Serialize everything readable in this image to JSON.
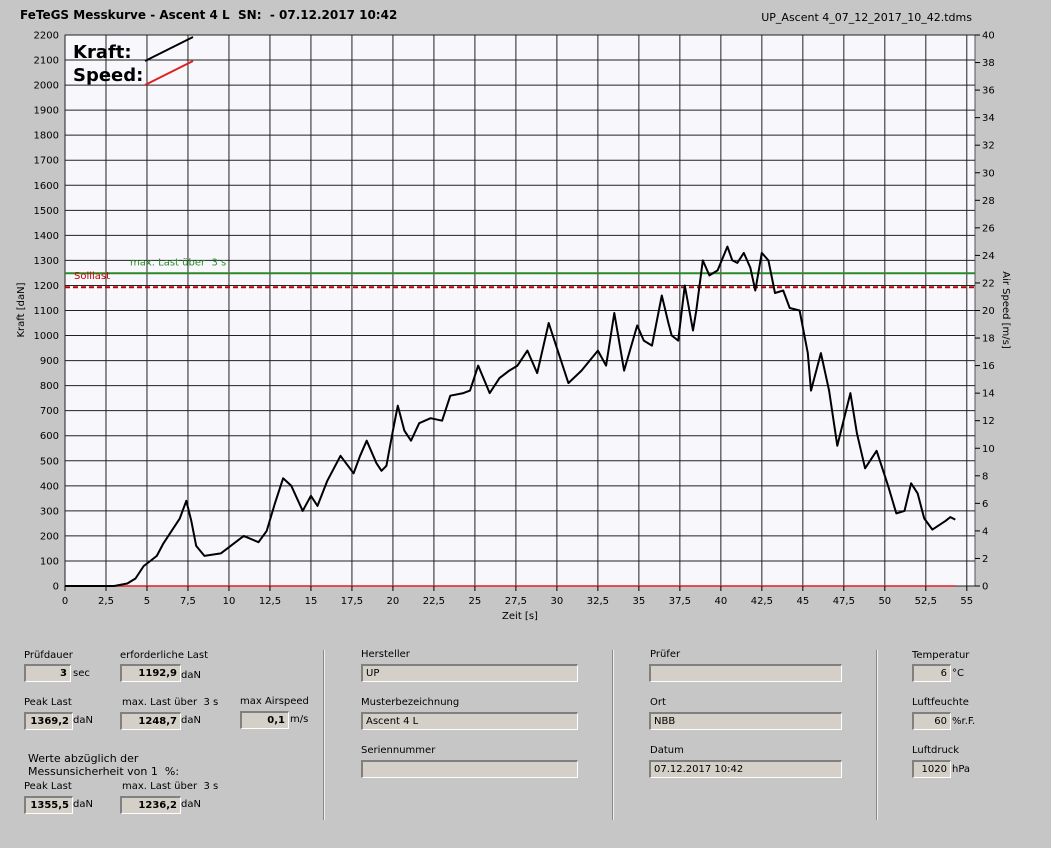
{
  "window_title": "FeTeGS Messkurve - Ascent 4 L  SN:  - 07.12.2017 10:42",
  "file_name": "UP_Ascent 4_07_12_2017_10_42.tdms",
  "chart_data": {
    "type": "line",
    "xlabel": "Zeit [s]",
    "ylabel": "Kraft [daN]",
    "y2label": "Air Speed [m/s]",
    "xlim": [
      0,
      55.5
    ],
    "ylim": [
      0,
      2200
    ],
    "y2lim": [
      0,
      40
    ],
    "xticks": [
      0,
      {
        "value": 2.5,
        "label": "2,5"
      },
      5,
      {
        "value": 7.5,
        "label": "7,5"
      },
      10,
      {
        "value": 12.5,
        "label": "12,5"
      },
      15,
      {
        "value": 17.5,
        "label": "17,5"
      },
      20,
      {
        "value": 22.5,
        "label": "22,5"
      },
      25,
      {
        "value": 27.5,
        "label": "27,5"
      },
      30,
      {
        "value": 32.5,
        "label": "32,5"
      },
      35,
      {
        "value": 37.5,
        "label": "37,5"
      },
      40,
      {
        "value": 42.5,
        "label": "42,5"
      },
      45,
      {
        "value": 47.5,
        "label": "47,5"
      },
      50,
      {
        "value": 52.5,
        "label": "52,5"
      },
      55
    ],
    "yticks": [
      0,
      100,
      200,
      300,
      400,
      500,
      600,
      700,
      800,
      900,
      1000,
      1100,
      1200,
      1300,
      1400,
      1500,
      1600,
      1700,
      1800,
      1900,
      2000,
      2100,
      2200
    ],
    "y2ticks": [
      0,
      2,
      4,
      6,
      8,
      10,
      12,
      14,
      16,
      18,
      20,
      22,
      24,
      26,
      28,
      30,
      32,
      34,
      36,
      38,
      40
    ],
    "grid": true,
    "series": [
      {
        "name": "Kraft:",
        "color": "#000000",
        "x": [
          0,
          3,
          3.8,
          4.3,
          4.8,
          5.2,
          5.6,
          6,
          6.5,
          7,
          7.4,
          7.7,
          8,
          8.5,
          9.5,
          10.3,
          10.9,
          11.8,
          12.3,
          12.8,
          13.3,
          13.8,
          14.5,
          15,
          15.4,
          16,
          16.8,
          17.6,
          18,
          18.4,
          19,
          19.3,
          19.6,
          20,
          20.3,
          20.7,
          21.1,
          21.6,
          22.3,
          23,
          23.5,
          24.3,
          24.7,
          25.2,
          25.9,
          26.5,
          27.1,
          27.6,
          28.2,
          28.8,
          29.5,
          30,
          30.7,
          31.5,
          32,
          32.5,
          33,
          33.5,
          34.1,
          34.9,
          35.3,
          35.8,
          36.4,
          36.8,
          37,
          37.4,
          37.8,
          38.3,
          38.5,
          38.9,
          39.3,
          39.8,
          40.4,
          40.7,
          41,
          41.4,
          41.8,
          42.1,
          42.5,
          42.9,
          43.3,
          43.8,
          44.2,
          44.8,
          45.3,
          45.5,
          46.1,
          46.6,
          47.1,
          47.9,
          48.3,
          48.8,
          49.5,
          50.2,
          50.7,
          51.2,
          51.6,
          52,
          52.4,
          52.9,
          53.7,
          54,
          54.3
        ],
        "values": [
          0,
          0,
          10,
          30,
          80,
          100,
          120,
          170,
          220,
          270,
          340,
          260,
          160,
          120,
          130,
          170,
          200,
          175,
          220,
          330,
          430,
          400,
          300,
          360,
          320,
          420,
          520,
          450,
          520,
          580,
          490,
          460,
          480,
          620,
          720,
          620,
          580,
          650,
          670,
          660,
          760,
          770,
          780,
          880,
          770,
          830,
          860,
          880,
          940,
          850,
          1050,
          950,
          810,
          860,
          900,
          940,
          880,
          1090,
          860,
          1040,
          980,
          960,
          1160,
          1050,
          1000,
          980,
          1200,
          1020,
          1100,
          1300,
          1240,
          1260,
          1355,
          1300,
          1290,
          1330,
          1270,
          1180,
          1330,
          1300,
          1170,
          1180,
          1110,
          1100,
          930,
          780,
          930,
          780,
          560,
          770,
          610,
          470,
          540,
          400,
          290,
          300,
          410,
          370,
          270,
          225,
          260,
          275,
          265
        ]
      },
      {
        "name": "Speed:",
        "color": "#e02020",
        "axis": "y2",
        "x": [
          0,
          54.3
        ],
        "values": [
          0,
          0
        ]
      }
    ],
    "reference_lines": [
      {
        "label": "max. Last über  3 s",
        "value": 1248.7,
        "color": "#2a8a2a"
      },
      {
        "label": "Solllast",
        "value": 1192.9,
        "color": "#c00000",
        "dashed": true
      }
    ]
  },
  "fields": {
    "pruefdauer": {
      "label": "Prüfdauer",
      "value": "3",
      "unit": "sec"
    },
    "erf_last": {
      "label": "erforderliche Last",
      "value": "1192,9",
      "unit": "daN"
    },
    "peak_last": {
      "label": "Peak Last",
      "value": "1369,2",
      "unit": "daN"
    },
    "max_last": {
      "label": "max. Last über  3 s",
      "value": "1248,7",
      "unit": "daN"
    },
    "max_airspeed": {
      "label": "max Airspeed",
      "value": "0,1",
      "unit": "m/s"
    },
    "note": "Werte abzüglich der\nMessunsicherheit von 1  %:",
    "peak_last_corr": {
      "label": "Peak Last",
      "value": "1355,5",
      "unit": "daN"
    },
    "max_last_corr": {
      "label": "max. Last über  3 s",
      "value": "1236,2",
      "unit": "daN"
    },
    "hersteller": {
      "label": "Hersteller",
      "value": "UP"
    },
    "muster": {
      "label": "Musterbezeichnung",
      "value": "Ascent 4 L"
    },
    "serie": {
      "label": "Seriennummer"
    },
    "pruefer": {
      "label": "Prüfer"
    },
    "ort": {
      "label": "Ort",
      "value": "NBB"
    },
    "datum": {
      "label": "Datum",
      "value": "07.12.2017 10:42"
    },
    "temperatur": {
      "label": "Temperatur",
      "value": "6",
      "unit": "°C"
    },
    "luftfeuchte": {
      "label": "Luftfeuchte",
      "value": "60",
      "unit": "%r.F."
    },
    "luftdruck": {
      "label": "Luftdruck",
      "value": "1020",
      "unit": "hPa"
    }
  }
}
